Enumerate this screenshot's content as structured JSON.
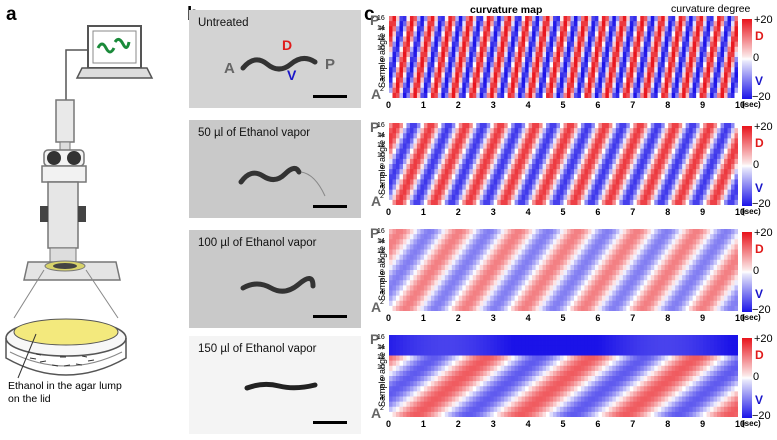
{
  "panels": {
    "a": {
      "letter": "a",
      "caption_line1": "Ethanol  in the agar lump",
      "caption_line2": "on the lid"
    },
    "b": {
      "letter": "b",
      "photos": [
        {
          "caption": "Untreated",
          "label_A": "A",
          "label_P": "P",
          "label_D": "D",
          "label_V": "V"
        },
        {
          "caption": "50 µl of Ethanol vapor"
        },
        {
          "caption": "100 µl of Ethanol vapor"
        },
        {
          "caption": "150 µl of Ethanol vapor"
        }
      ]
    },
    "c": {
      "letter": "c",
      "title": "curvature map",
      "legend_title": "curvature  degree",
      "colorbar": {
        "max": "+20",
        "zero": "0",
        "min": "−20",
        "D": "D",
        "V": "V"
      },
      "ylabel": "Sample angle #",
      "P": "P",
      "A": "A",
      "xunit": "(sec)"
    }
  },
  "chart_data": [
    {
      "type": "heatmap",
      "title": "curvature map",
      "condition": "Untreated",
      "xlabel": "(sec)",
      "ylabel": "Sample angle #",
      "x_ticks": [
        "0",
        "1",
        "2",
        "3",
        "4",
        "5",
        "6",
        "7",
        "8",
        "9",
        "10"
      ],
      "y_ticks": [
        "2",
        "4",
        "6",
        "8",
        "10",
        "12",
        "14",
        "16"
      ],
      "value_range": [
        -20,
        20
      ],
      "band_period_sec": 0.55,
      "amplitude": 1.0
    },
    {
      "type": "heatmap",
      "condition": "50 µl of Ethanol vapor",
      "xlabel": "(sec)",
      "ylabel": "Sample angle #",
      "x_ticks": [
        "0",
        "1",
        "2",
        "3",
        "4",
        "5",
        "6",
        "7",
        "8",
        "9",
        "10"
      ],
      "y_ticks": [
        "2",
        "4",
        "6",
        "8",
        "10",
        "12",
        "14",
        "16"
      ],
      "value_range": [
        -20,
        20
      ],
      "band_period_sec": 1.0,
      "amplitude": 0.85
    },
    {
      "type": "heatmap",
      "condition": "100 µl of Ethanol vapor",
      "xlabel": "(sec)",
      "ylabel": "Sample angle #",
      "x_ticks": [
        "0",
        "1",
        "2",
        "3",
        "4",
        "5",
        "6",
        "7",
        "8",
        "9",
        "10"
      ],
      "y_ticks": [
        "2",
        "4",
        "6",
        "8",
        "10",
        "12",
        "14",
        "16"
      ],
      "value_range": [
        -20,
        20
      ],
      "band_period_sec": 1.7,
      "amplitude": 0.55
    },
    {
      "type": "heatmap",
      "condition": "150 µl of Ethanol vapor",
      "xlabel": "(sec)",
      "ylabel": "Sample angle #",
      "x_ticks": [
        "0",
        "1",
        "2",
        "3",
        "4",
        "5",
        "6",
        "7",
        "8",
        "9",
        "10"
      ],
      "y_ticks": [
        "2",
        "4",
        "6",
        "8",
        "10",
        "12",
        "14",
        "16"
      ],
      "value_range": [
        -20,
        20
      ],
      "band_period_sec": 3.0,
      "amplitude": 0.7
    }
  ],
  "colors": {
    "red": "#e8131b",
    "blue": "#1b14e8",
    "gray_letter": "#666666"
  }
}
